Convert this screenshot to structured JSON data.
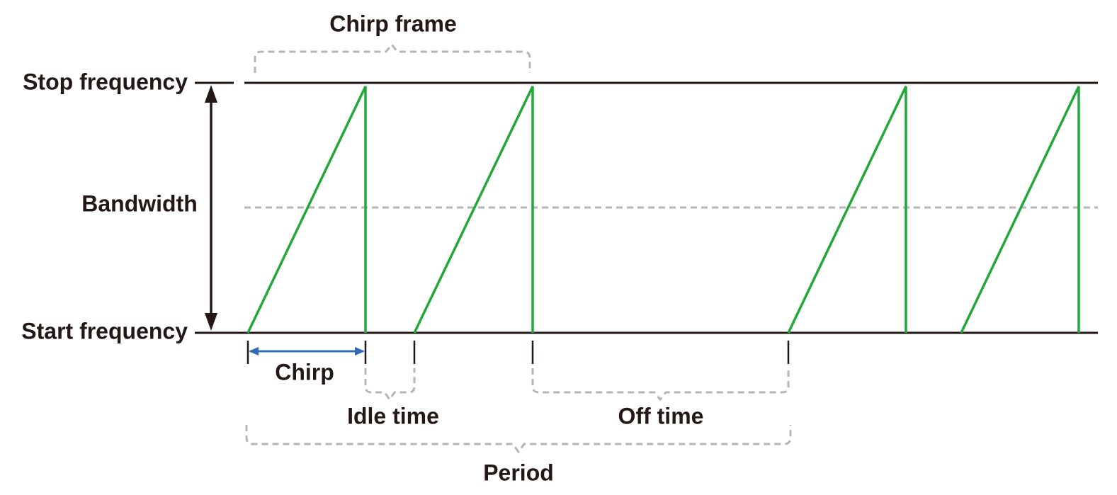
{
  "labels": {
    "chirp_frame": "Chirp frame",
    "stop_frequency": "Stop frequency",
    "bandwidth": "Bandwidth",
    "start_frequency": "Start frequency",
    "chirp": "Chirp",
    "idle_time": "Idle time",
    "off_time": "Off time",
    "period": "Period"
  }
}
